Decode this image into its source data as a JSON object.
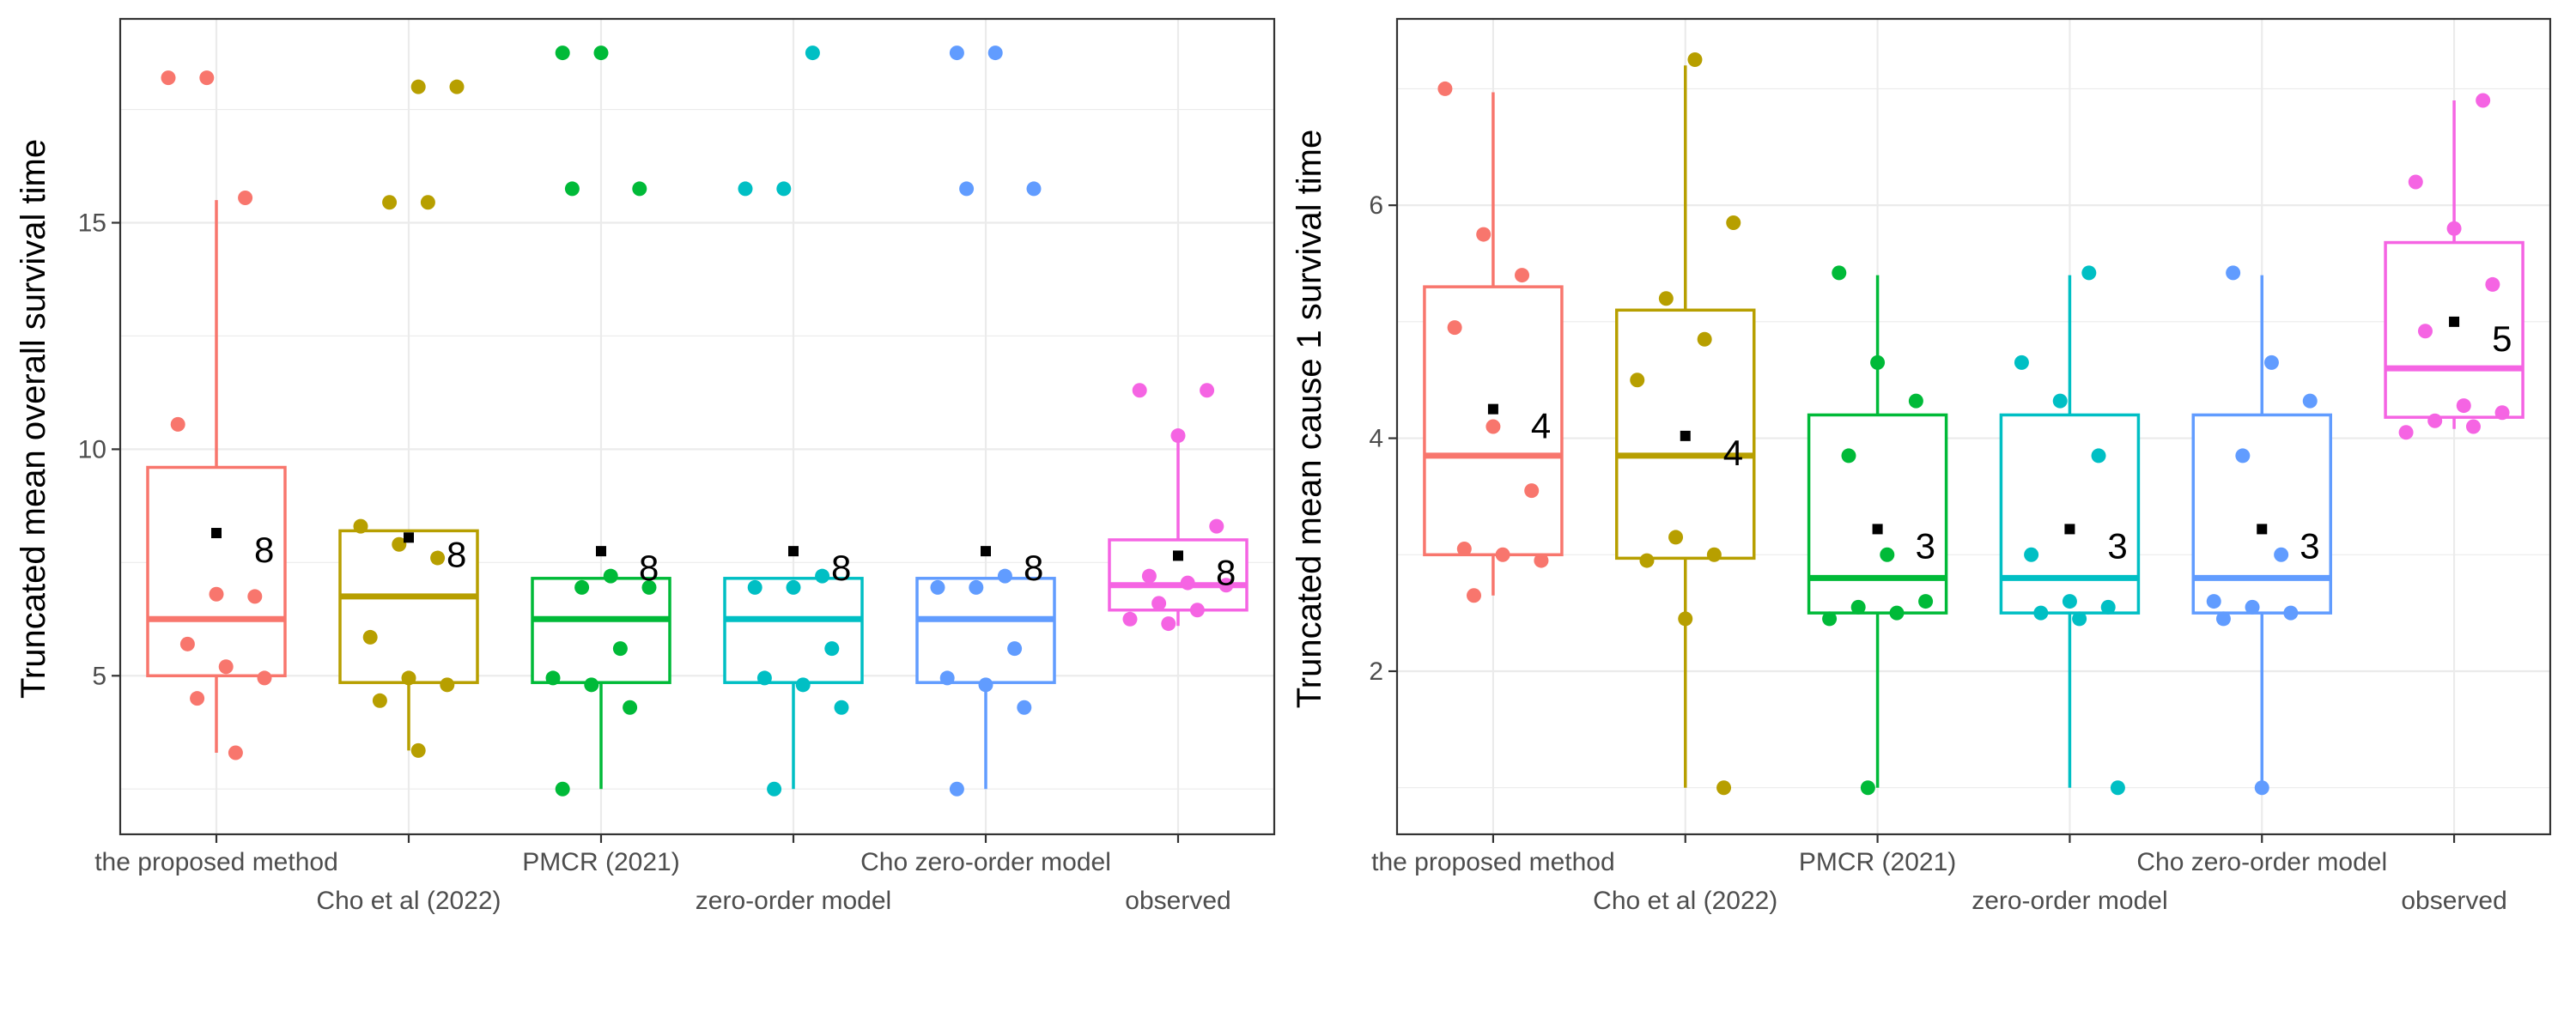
{
  "chart_data": [
    {
      "type": "box",
      "ylabel": "Truncated mean overall survival time",
      "ylim": [
        1.5,
        19.5
      ],
      "yticks": [
        5,
        10,
        15
      ],
      "grid": true,
      "colors": {
        "the proposed method": "#f8766d",
        "Cho et al (2022)": "#b79f00",
        "PMCR (2021)": "#00ba38",
        "zero-order model": "#00bfc4",
        "Cho zero-order model": "#619cff",
        "observed": "#f564e3"
      },
      "groups": [
        {
          "category": "the proposed method",
          "q1": 5.0,
          "median": 6.25,
          "q3": 9.6,
          "whisker_low": 3.3,
          "whisker_high": 15.5,
          "mean": 8.15,
          "mean_label": "8",
          "points": [
            18.2,
            18.2,
            15.55,
            10.55,
            6.8,
            6.75,
            5.7,
            5.2,
            4.95,
            4.5,
            3.3
          ]
        },
        {
          "category": "Cho et al (2022)",
          "q1": 4.85,
          "median": 6.75,
          "q3": 8.2,
          "whisker_low": 3.35,
          "whisker_high": 8.2,
          "mean": 8.05,
          "mean_label": "8",
          "points": [
            18.0,
            18.0,
            15.45,
            15.45,
            8.3,
            7.9,
            7.6,
            5.85,
            4.95,
            4.8,
            4.45,
            3.35
          ]
        },
        {
          "category": "PMCR (2021)",
          "q1": 4.85,
          "median": 6.25,
          "q3": 7.15,
          "whisker_low": 2.5,
          "whisker_high": 7.15,
          "mean": 7.75,
          "mean_label": "8",
          "points": [
            18.75,
            18.75,
            15.75,
            15.75,
            7.2,
            6.95,
            6.95,
            5.6,
            4.95,
            4.8,
            4.3,
            2.5
          ]
        },
        {
          "category": "zero-order model",
          "q1": 4.85,
          "median": 6.25,
          "q3": 7.15,
          "whisker_low": 2.5,
          "whisker_high": 7.15,
          "mean": 7.75,
          "mean_label": "8",
          "points": [
            18.75,
            15.75,
            15.75,
            7.2,
            6.95,
            6.95,
            5.6,
            4.95,
            4.8,
            4.3,
            2.5
          ]
        },
        {
          "category": "Cho zero-order model",
          "q1": 4.85,
          "median": 6.25,
          "q3": 7.15,
          "whisker_low": 2.5,
          "whisker_high": 7.15,
          "mean": 7.75,
          "mean_label": "8",
          "points": [
            18.75,
            18.75,
            15.75,
            15.75,
            7.2,
            6.95,
            6.95,
            5.6,
            4.95,
            4.8,
            4.3,
            2.5
          ]
        },
        {
          "category": "observed",
          "q1": 6.45,
          "median": 7.0,
          "q3": 8.0,
          "whisker_low": 6.1,
          "whisker_high": 10.3,
          "mean": 7.65,
          "mean_label": "8",
          "points": [
            11.3,
            11.3,
            10.3,
            8.3,
            7.2,
            7.05,
            7.0,
            6.6,
            6.45,
            6.25,
            6.15
          ]
        }
      ]
    },
    {
      "type": "box",
      "ylabel": "Truncated mean cause 1 survival time",
      "ylim": [
        0.6,
        7.6
      ],
      "yticks": [
        2,
        4,
        6
      ],
      "grid": true,
      "colors": {
        "the proposed method": "#f8766d",
        "Cho et al (2022)": "#b79f00",
        "PMCR (2021)": "#00ba38",
        "zero-order model": "#00bfc4",
        "Cho zero-order model": "#619cff",
        "observed": "#f564e3"
      },
      "groups": [
        {
          "category": "the proposed method",
          "q1": 3.0,
          "median": 3.85,
          "q3": 5.3,
          "whisker_low": 2.65,
          "whisker_high": 6.97,
          "mean": 4.25,
          "mean_label": "4",
          "points": [
            7.0,
            5.75,
            5.4,
            4.95,
            4.1,
            3.55,
            3.05,
            3.0,
            2.95,
            2.65
          ]
        },
        {
          "category": "Cho et al (2022)",
          "q1": 2.97,
          "median": 3.85,
          "q3": 5.1,
          "whisker_low": 1.0,
          "whisker_high": 7.2,
          "mean": 4.02,
          "mean_label": "4",
          "points": [
            7.25,
            5.85,
            5.2,
            4.85,
            4.5,
            3.15,
            3.0,
            2.95,
            2.45,
            1.0
          ]
        },
        {
          "category": "PMCR (2021)",
          "q1": 2.5,
          "median": 2.8,
          "q3": 4.2,
          "whisker_low": 1.0,
          "whisker_high": 5.4,
          "mean": 3.22,
          "mean_label": "3",
          "points": [
            5.42,
            4.65,
            4.32,
            3.85,
            3.0,
            2.6,
            2.55,
            2.5,
            2.45,
            1.0
          ]
        },
        {
          "category": "zero-order model",
          "q1": 2.5,
          "median": 2.8,
          "q3": 4.2,
          "whisker_low": 1.0,
          "whisker_high": 5.4,
          "mean": 3.22,
          "mean_label": "3",
          "points": [
            5.42,
            4.65,
            4.32,
            3.85,
            3.0,
            2.6,
            2.55,
            2.5,
            2.45,
            1.0
          ]
        },
        {
          "category": "Cho zero-order model",
          "q1": 2.5,
          "median": 2.8,
          "q3": 4.2,
          "whisker_low": 1.0,
          "whisker_high": 5.4,
          "mean": 3.22,
          "mean_label": "3",
          "points": [
            5.42,
            4.65,
            4.32,
            3.85,
            3.0,
            2.6,
            2.55,
            2.5,
            2.45,
            1.0
          ]
        },
        {
          "category": "observed",
          "q1": 4.18,
          "median": 4.6,
          "q3": 5.68,
          "whisker_low": 4.08,
          "whisker_high": 6.9,
          "mean": 5.0,
          "mean_label": "5",
          "points": [
            6.9,
            6.2,
            5.8,
            5.32,
            4.92,
            4.28,
            4.22,
            4.15,
            4.1,
            4.05
          ]
        }
      ]
    }
  ]
}
